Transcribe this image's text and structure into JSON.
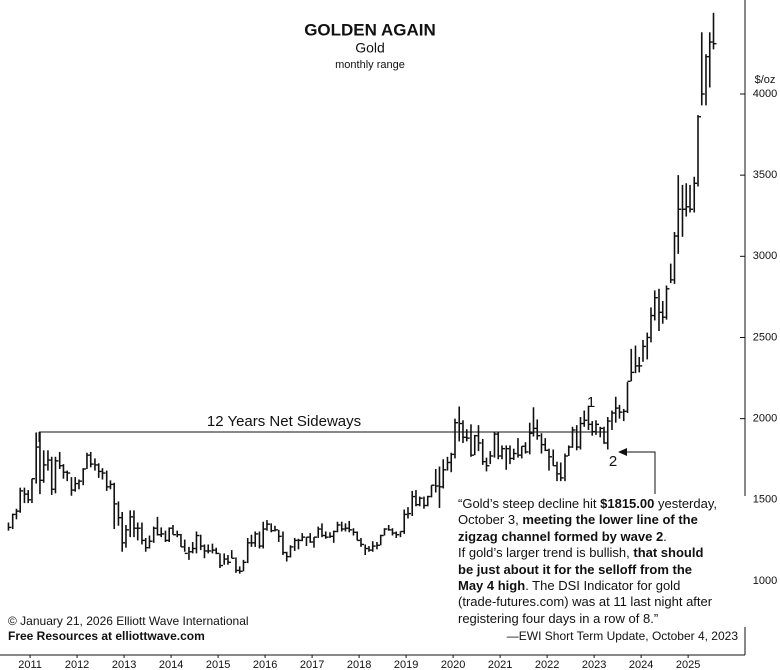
{
  "chart_data": {
    "type": "range",
    "title": "GOLDEN AGAIN",
    "subtitle": "Gold",
    "subtitle2": "monthly range",
    "y_label": "$/oz",
    "color": "#111111",
    "xlim": [
      2010.86,
      2026.71
    ],
    "ylim": [
      544,
      4579
    ],
    "xticks": [
      {
        "value": 2011.5,
        "label": "2011"
      },
      {
        "value": 2012.5,
        "label": "2012"
      },
      {
        "value": 2013.5,
        "label": "2013"
      },
      {
        "value": 2014.5,
        "label": "2014"
      },
      {
        "value": 2015.5,
        "label": "2015"
      },
      {
        "value": 2016.5,
        "label": "2016"
      },
      {
        "value": 2017.5,
        "label": "2017"
      },
      {
        "value": 2018.5,
        "label": "2018"
      },
      {
        "value": 2019.5,
        "label": "2019"
      },
      {
        "value": 2020.5,
        "label": "2020"
      },
      {
        "value": 2021.5,
        "label": "2021"
      },
      {
        "value": 2022.5,
        "label": "2022"
      },
      {
        "value": 2023.5,
        "label": "2023"
      },
      {
        "value": 2024.5,
        "label": "2024"
      },
      {
        "value": 2025.5,
        "label": "2025"
      }
    ],
    "yticks": [
      1000,
      1500,
      2000,
      2500,
      3000,
      3500,
      4000
    ],
    "x": [
      2011.04,
      2011.13,
      2011.21,
      2011.29,
      2011.38,
      2011.46,
      2011.54,
      2011.63,
      2011.71,
      2011.79,
      2011.88,
      2011.96,
      2012.04,
      2012.13,
      2012.21,
      2012.29,
      2012.38,
      2012.46,
      2012.54,
      2012.63,
      2012.71,
      2012.79,
      2012.88,
      2012.96,
      2013.04,
      2013.13,
      2013.21,
      2013.29,
      2013.38,
      2013.46,
      2013.54,
      2013.63,
      2013.71,
      2013.79,
      2013.88,
      2013.96,
      2014.04,
      2014.13,
      2014.21,
      2014.29,
      2014.38,
      2014.46,
      2014.54,
      2014.63,
      2014.71,
      2014.79,
      2014.88,
      2014.96,
      2015.04,
      2015.13,
      2015.21,
      2015.29,
      2015.38,
      2015.46,
      2015.54,
      2015.63,
      2015.71,
      2015.79,
      2015.88,
      2015.96,
      2016.04,
      2016.13,
      2016.21,
      2016.29,
      2016.38,
      2016.46,
      2016.54,
      2016.63,
      2016.71,
      2016.79,
      2016.88,
      2016.96,
      2017.04,
      2017.13,
      2017.21,
      2017.29,
      2017.38,
      2017.46,
      2017.54,
      2017.63,
      2017.71,
      2017.79,
      2017.88,
      2017.96,
      2018.04,
      2018.13,
      2018.21,
      2018.29,
      2018.38,
      2018.46,
      2018.54,
      2018.63,
      2018.71,
      2018.79,
      2018.88,
      2018.96,
      2019.04,
      2019.13,
      2019.21,
      2019.29,
      2019.38,
      2019.46,
      2019.54,
      2019.63,
      2019.71,
      2019.79,
      2019.88,
      2019.96,
      2020.04,
      2020.13,
      2020.21,
      2020.29,
      2020.38,
      2020.46,
      2020.54,
      2020.63,
      2020.71,
      2020.79,
      2020.88,
      2020.96,
      2021.04,
      2021.13,
      2021.21,
      2021.29,
      2021.38,
      2021.46,
      2021.54,
      2021.63,
      2021.71,
      2021.79,
      2021.88,
      2021.96,
      2022.04,
      2022.13,
      2022.21,
      2022.29,
      2022.38,
      2022.46,
      2022.54,
      2022.63,
      2022.71,
      2022.79,
      2022.88,
      2022.96,
      2023.04,
      2023.13,
      2023.21,
      2023.29,
      2023.38,
      2023.46,
      2023.54,
      2023.63,
      2023.71,
      2023.79,
      2023.88,
      2023.96,
      2024.04,
      2024.13,
      2024.21,
      2024.29,
      2024.38,
      2024.46,
      2024.54,
      2024.63,
      2024.71,
      2024.79,
      2024.88,
      2024.96,
      2025.04,
      2025.13,
      2025.21,
      2025.29,
      2025.38,
      2025.46,
      2025.54,
      2025.63,
      2025.71,
      2025.79,
      2025.88,
      2025.96,
      2026.04
    ],
    "high": [
      1360,
      1415,
      1445,
      1575,
      1575,
      1560,
      1630,
      1915,
      1920,
      1805,
      1805,
      1765,
      1765,
      1795,
      1720,
      1680,
      1640,
      1640,
      1625,
      1695,
      1790,
      1795,
      1755,
      1725,
      1695,
      1680,
      1620,
      1605,
      1490,
      1425,
      1345,
      1435,
      1435,
      1360,
      1360,
      1265,
      1280,
      1335,
      1395,
      1330,
      1310,
      1330,
      1345,
      1310,
      1290,
      1255,
      1210,
      1240,
      1305,
      1285,
      1225,
      1225,
      1230,
      1205,
      1170,
      1170,
      1160,
      1190,
      1145,
      1090,
      1130,
      1265,
      1285,
      1305,
      1305,
      1365,
      1375,
      1355,
      1340,
      1315,
      1305,
      1180,
      1220,
      1265,
      1260,
      1295,
      1270,
      1295,
      1270,
      1335,
      1355,
      1305,
      1300,
      1310,
      1365,
      1365,
      1355,
      1370,
      1325,
      1305,
      1265,
      1225,
      1215,
      1245,
      1240,
      1285,
      1325,
      1345,
      1325,
      1305,
      1305,
      1440,
      1455,
      1555,
      1560,
      1520,
      1520,
      1525,
      1590,
      1690,
      1705,
      1750,
      1765,
      1790,
      2000,
      2075,
      1990,
      1935,
      1965,
      1900,
      1960,
      1875,
      1760,
      1800,
      1915,
      1915,
      1835,
      1835,
      1835,
      1815,
      1880,
      1830,
      1855,
      1975,
      2070,
      1995,
      1910,
      1880,
      1815,
      1810,
      1735,
      1730,
      1785,
      1835,
      1950,
      1960,
      2010,
      2050,
      2080,
      1985,
      1990,
      1950,
      1950,
      2010,
      2050,
      2135,
      2085,
      2060,
      2225,
      2430,
      2450,
      2380,
      2485,
      2530,
      2685,
      2790,
      2800,
      2725,
      2820,
      2955,
      3150,
      3500,
      3440,
      3450,
      3440,
      3490,
      3870,
      4380,
      4245,
      4380,
      4500
    ],
    "low": [
      1310,
      1320,
      1380,
      1420,
      1480,
      1480,
      1480,
      1600,
      1535,
      1605,
      1680,
      1530,
      1540,
      1690,
      1630,
      1615,
      1525,
      1550,
      1565,
      1590,
      1690,
      1700,
      1680,
      1635,
      1625,
      1555,
      1565,
      1320,
      1340,
      1180,
      1205,
      1270,
      1270,
      1250,
      1225,
      1180,
      1200,
      1235,
      1280,
      1270,
      1240,
      1240,
      1285,
      1270,
      1210,
      1180,
      1130,
      1170,
      1170,
      1190,
      1140,
      1170,
      1170,
      1165,
      1080,
      1100,
      1100,
      1140,
      1050,
      1045,
      1060,
      1110,
      1210,
      1210,
      1200,
      1200,
      1310,
      1300,
      1305,
      1240,
      1160,
      1120,
      1145,
      1185,
      1195,
      1245,
      1215,
      1235,
      1205,
      1265,
      1270,
      1260,
      1265,
      1235,
      1300,
      1305,
      1305,
      1300,
      1280,
      1250,
      1210,
      1160,
      1180,
      1180,
      1195,
      1220,
      1280,
      1310,
      1280,
      1265,
      1270,
      1290,
      1385,
      1400,
      1460,
      1460,
      1445,
      1460,
      1515,
      1545,
      1450,
      1570,
      1680,
      1670,
      1755,
      1860,
      1850,
      1860,
      1765,
      1775,
      1800,
      1715,
      1675,
      1720,
      1760,
      1750,
      1750,
      1685,
      1720,
      1745,
      1760,
      1755,
      1785,
      1780,
      1890,
      1870,
      1785,
      1800,
      1680,
      1710,
      1615,
      1615,
      1615,
      1770,
      1820,
      1805,
      1810,
      1950,
      1930,
      1895,
      1900,
      1885,
      1845,
      1810,
      1930,
      1975,
      2000,
      1985,
      2035,
      2230,
      2280,
      2285,
      2350,
      2365,
      2470,
      2605,
      2540,
      2585,
      2610,
      2835,
      2830,
      3015,
      3120,
      3245,
      3270,
      3270,
      3430,
      3930,
      3930,
      4040,
      4275
    ],
    "close": [
      1330,
      1410,
      1430,
      1555,
      1535,
      1500,
      1630,
      1825,
      1620,
      1715,
      1745,
      1565,
      1740,
      1710,
      1670,
      1665,
      1560,
      1600,
      1615,
      1690,
      1775,
      1720,
      1715,
      1675,
      1665,
      1580,
      1595,
      1475,
      1390,
      1235,
      1315,
      1395,
      1325,
      1325,
      1250,
      1205,
      1245,
      1325,
      1285,
      1290,
      1250,
      1325,
      1285,
      1285,
      1210,
      1170,
      1180,
      1200,
      1280,
      1215,
      1185,
      1185,
      1190,
      1170,
      1095,
      1135,
      1115,
      1140,
      1065,
      1060,
      1115,
      1235,
      1235,
      1290,
      1215,
      1320,
      1350,
      1310,
      1315,
      1275,
      1175,
      1150,
      1210,
      1250,
      1250,
      1270,
      1270,
      1240,
      1270,
      1320,
      1280,
      1270,
      1275,
      1305,
      1345,
      1320,
      1325,
      1315,
      1300,
      1250,
      1225,
      1200,
      1190,
      1215,
      1220,
      1280,
      1320,
      1315,
      1295,
      1285,
      1305,
      1410,
      1415,
      1520,
      1470,
      1510,
      1465,
      1520,
      1590,
      1585,
      1580,
      1685,
      1730,
      1780,
      1975,
      1970,
      1885,
      1880,
      1775,
      1895,
      1850,
      1735,
      1710,
      1770,
      1905,
      1770,
      1815,
      1815,
      1755,
      1785,
      1775,
      1830,
      1795,
      1910,
      1940,
      1895,
      1840,
      1805,
      1765,
      1710,
      1660,
      1635,
      1770,
      1825,
      1930,
      1825,
      1970,
      1990,
      1965,
      1920,
      1965,
      1940,
      1850,
      1985,
      2035,
      2065,
      2040,
      2045,
      2230,
      2285,
      2325,
      2325,
      2445,
      2500,
      2635,
      2745,
      2655,
      2625,
      2800,
      2855,
      3125,
      3290,
      3290,
      3305,
      3290,
      3450,
      3860,
      4000,
      4230,
      4320,
      4310
    ],
    "annotations": {
      "sideways": "12 Years Net Sideways",
      "wave1": "1",
      "wave2": "2",
      "quote": [
        [
          {
            "text": "“Gold’s steep decline hit ",
            "bold": false
          },
          {
            "text": "$1815.00",
            "bold": true
          },
          {
            "text": " yesterday,",
            "bold": false
          }
        ],
        [
          {
            "text": "October 3, ",
            "bold": false
          },
          {
            "text": "meeting the lower line of the",
            "bold": true
          }
        ],
        [
          {
            "text": "zigzag channel formed by wave 2",
            "bold": true
          },
          {
            "text": ".",
            "bold": false
          }
        ],
        [
          {
            "text": "If gold’s larger trend is bullish, ",
            "bold": false
          },
          {
            "text": "that should",
            "bold": true
          }
        ],
        [
          {
            "text": "be just about it for the selloff from the",
            "bold": true
          }
        ],
        [
          {
            "text": "May 4 high",
            "bold": true
          },
          {
            "text": ". The DSI Indicator for gold",
            "bold": false
          }
        ],
        [
          {
            "text": "(trade-futures.com) was at 11 last night after",
            "bold": false
          }
        ],
        [
          {
            "text": "registering four days in a row of 8.”",
            "bold": false
          }
        ]
      ],
      "source": "—EWI Short Term Update, October 4, 2023",
      "copyright": "© January 21, 2026  Elliott Wave International",
      "resources": "Free Resources at elliottwave.com"
    }
  }
}
